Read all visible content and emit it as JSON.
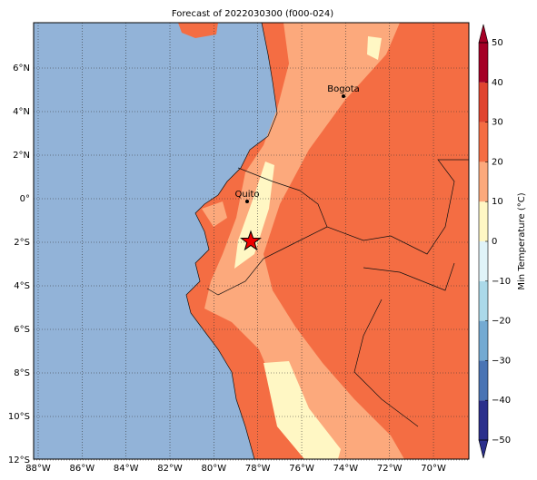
{
  "title": "Forecast of 2022030300 (f000-024)",
  "lon_ticks": [
    {
      "value": -88,
      "label": "88°W"
    },
    {
      "value": -86,
      "label": "86°W"
    },
    {
      "value": -84,
      "label": "84°W"
    },
    {
      "value": -82,
      "label": "82°W"
    },
    {
      "value": -80,
      "label": "80°W"
    },
    {
      "value": -78,
      "label": "78°W"
    },
    {
      "value": -76,
      "label": "76°W"
    },
    {
      "value": -74,
      "label": "74°W"
    },
    {
      "value": -72,
      "label": "72°W"
    },
    {
      "value": -70,
      "label": "70°W"
    }
  ],
  "lat_ticks": [
    {
      "value": 6,
      "label": "6°N"
    },
    {
      "value": 4,
      "label": "4°N"
    },
    {
      "value": 2,
      "label": "2°N"
    },
    {
      "value": 0,
      "label": "0°"
    },
    {
      "value": -2,
      "label": "2°S"
    },
    {
      "value": -4,
      "label": "4°S"
    },
    {
      "value": -6,
      "label": "6°S"
    },
    {
      "value": -8,
      "label": "8°S"
    },
    {
      "value": -10,
      "label": "10°S"
    },
    {
      "value": -12,
      "label": "12°S"
    }
  ],
  "cities": [
    {
      "name": "Bogota"
    },
    {
      "name": "Quito"
    }
  ],
  "colorbar": {
    "label": "Min Temperature (°C)",
    "ticks": [
      {
        "value": -50,
        "label": "−50"
      },
      {
        "value": -40,
        "label": "−40"
      },
      {
        "value": -30,
        "label": "−30"
      },
      {
        "value": -20,
        "label": "−20"
      },
      {
        "value": -10,
        "label": "−10"
      },
      0,
      10,
      20,
      30,
      40,
      50
    ],
    "colors": [
      "#2b2f8c",
      "#4a74b4",
      "#74aad2",
      "#abd9e9",
      "#e0f3f8",
      "#fff7c4",
      "#fca97c",
      "#f46d43",
      "#e0442f",
      "#a50026"
    ]
  }
}
